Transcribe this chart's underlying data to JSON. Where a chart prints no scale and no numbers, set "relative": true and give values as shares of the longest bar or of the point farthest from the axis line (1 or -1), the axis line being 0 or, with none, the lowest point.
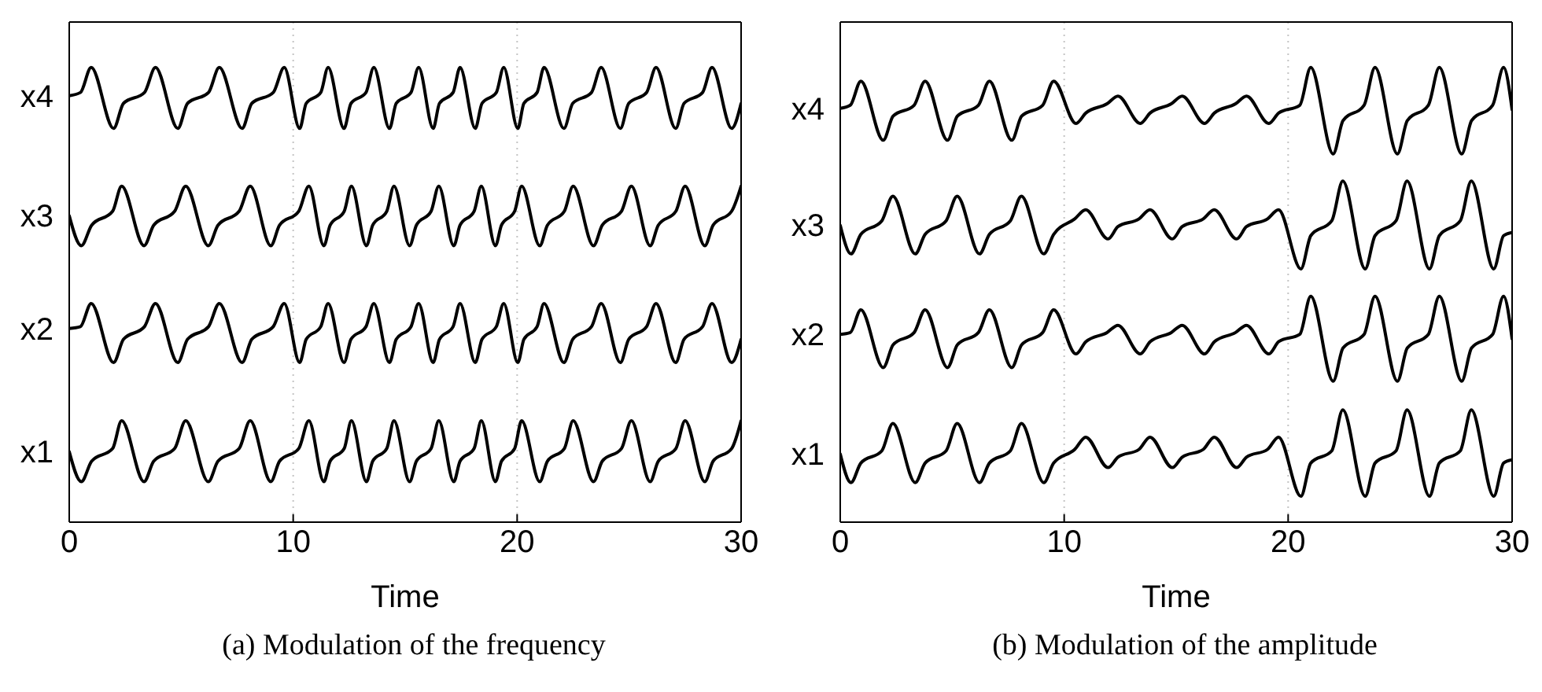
{
  "chart_data": [
    {
      "type": "line",
      "title": "(a) Modulation of the frequency",
      "xlabel": "Time",
      "xlim": [
        0,
        30
      ],
      "xticks": [
        0,
        10,
        20,
        30
      ],
      "relative": true,
      "grid": "x",
      "marker": "none",
      "line_style": "solid",
      "series": [
        {
          "name": "x4",
          "color": "#000000",
          "x": [
            0,
            0.5,
            0.98,
            1.98,
            2.42,
            3.36,
            3.85,
            4.85,
            5.28,
            6.22,
            6.7,
            7.72,
            8.15,
            9.11,
            9.6,
            10.29,
            10.58,
            11.23,
            11.56,
            12.27,
            12.58,
            13.25,
            13.6,
            14.3,
            14.6,
            15.26,
            15.6,
            16.25,
            16.53,
            17.14,
            17.45,
            18.13,
            18.43,
            19.07,
            19.4,
            20.03,
            20.3,
            20.89,
            21.2,
            22.09,
            22.48,
            23.32,
            23.75,
            24.61,
            24.98,
            25.78,
            26.2,
            27.08,
            27.45,
            28.28,
            28.7,
            29.58,
            30
          ],
          "values": [
            0.938,
            0.945,
            1,
            0.866,
            0.921,
            0.945,
            1,
            0.866,
            0.921,
            0.945,
            1,
            0.866,
            0.921,
            0.945,
            1,
            0.866,
            0.921,
            0.945,
            1,
            0.866,
            0.921,
            0.945,
            1,
            0.866,
            0.921,
            0.945,
            1,
            0.866,
            0.921,
            0.945,
            1,
            0.866,
            0.921,
            0.945,
            1,
            0.866,
            0.921,
            0.945,
            1,
            0.866,
            0.921,
            0.945,
            1,
            0.866,
            0.921,
            0.945,
            1,
            0.866,
            0.921,
            0.945,
            1,
            0.866,
            0.921
          ]
        },
        {
          "name": "x3",
          "color": "#000000",
          "x": [
            0,
            0.54,
            1.0,
            1.94,
            2.34,
            3.34,
            3.77,
            4.71,
            5.2,
            6.21,
            6.64,
            7.59,
            8.08,
            9.0,
            9.39,
            10.25,
            10.7,
            11.37,
            11.65,
            12.28,
            12.6,
            13.27,
            13.55,
            14.18,
            14.5,
            15.2,
            15.5,
            16.16,
            16.5,
            17.17,
            17.45,
            18.08,
            18.4,
            19.03,
            19.3,
            19.89,
            20.2,
            21.01,
            21.35,
            22.11,
            22.5,
            23.41,
            23.8,
            24.66,
            25.1,
            25.94,
            26.3,
            27.09,
            27.5,
            28.38,
            28.75,
            29.58,
            30
          ],
          "values": [
            0.674,
            0.608,
            0.653,
            0.684,
            0.739,
            0.608,
            0.653,
            0.684,
            0.739,
            0.608,
            0.653,
            0.684,
            0.739,
            0.608,
            0.653,
            0.684,
            0.739,
            0.608,
            0.653,
            0.684,
            0.739,
            0.608,
            0.653,
            0.684,
            0.739,
            0.608,
            0.653,
            0.684,
            0.739,
            0.608,
            0.653,
            0.684,
            0.739,
            0.608,
            0.653,
            0.684,
            0.739,
            0.608,
            0.653,
            0.684,
            0.739,
            0.608,
            0.653,
            0.684,
            0.739,
            0.608,
            0.653,
            0.684,
            0.739,
            0.608,
            0.653,
            0.684,
            0.739
          ]
        },
        {
          "name": "x2",
          "color": "#000000",
          "x": [
            0,
            0.5,
            0.98,
            1.98,
            2.42,
            3.36,
            3.85,
            4.85,
            5.28,
            6.22,
            6.7,
            7.72,
            8.15,
            9.11,
            9.6,
            10.29,
            10.58,
            11.23,
            11.56,
            12.27,
            12.58,
            13.25,
            13.6,
            14.3,
            14.6,
            15.26,
            15.6,
            16.25,
            16.53,
            17.14,
            17.45,
            18.13,
            18.43,
            19.07,
            19.4,
            20.03,
            20.3,
            20.89,
            21.2,
            22.09,
            22.48,
            23.32,
            23.75,
            24.61,
            24.98,
            25.78,
            26.2,
            27.08,
            27.45,
            28.28,
            28.7,
            29.58,
            30
          ],
          "values": [
            0.426,
            0.43,
            0.481,
            0.351,
            0.402,
            0.43,
            0.481,
            0.351,
            0.402,
            0.43,
            0.481,
            0.351,
            0.402,
            0.43,
            0.481,
            0.351,
            0.402,
            0.43,
            0.481,
            0.351,
            0.402,
            0.43,
            0.481,
            0.351,
            0.402,
            0.43,
            0.481,
            0.351,
            0.402,
            0.43,
            0.481,
            0.351,
            0.402,
            0.43,
            0.481,
            0.351,
            0.402,
            0.43,
            0.481,
            0.351,
            0.402,
            0.43,
            0.481,
            0.351,
            0.402,
            0.43,
            0.481,
            0.351,
            0.402,
            0.43,
            0.481,
            0.351,
            0.402
          ]
        },
        {
          "name": "x1",
          "color": "#000000",
          "x": [
            0,
            0.54,
            1.0,
            1.94,
            2.34,
            3.34,
            3.77,
            4.71,
            5.2,
            6.21,
            6.64,
            7.59,
            8.08,
            9.0,
            9.39,
            10.25,
            10.7,
            11.37,
            11.65,
            12.28,
            12.6,
            13.27,
            13.55,
            14.18,
            14.5,
            15.2,
            15.5,
            16.16,
            16.5,
            17.17,
            17.45,
            18.08,
            18.4,
            19.03,
            19.3,
            19.89,
            20.2,
            21.01,
            21.35,
            22.11,
            22.5,
            23.41,
            23.8,
            24.66,
            25.1,
            25.94,
            26.3,
            27.09,
            27.5,
            28.38,
            28.75,
            29.58,
            30
          ],
          "values": [
            0.155,
            0.089,
            0.134,
            0.162,
            0.223,
            0.089,
            0.134,
            0.162,
            0.223,
            0.089,
            0.134,
            0.162,
            0.223,
            0.089,
            0.134,
            0.162,
            0.223,
            0.089,
            0.134,
            0.162,
            0.223,
            0.089,
            0.134,
            0.162,
            0.223,
            0.089,
            0.134,
            0.162,
            0.223,
            0.089,
            0.134,
            0.162,
            0.223,
            0.089,
            0.134,
            0.162,
            0.223,
            0.089,
            0.134,
            0.162,
            0.223,
            0.089,
            0.134,
            0.162,
            0.223,
            0.089,
            0.134,
            0.162,
            0.223,
            0.089,
            0.134,
            0.162,
            0.223
          ]
        }
      ]
    },
    {
      "type": "line",
      "title": "(b) Modulation of the amplitude",
      "xlabel": "Time",
      "xlim": [
        0,
        30
      ],
      "xticks": [
        0,
        10,
        20,
        30
      ],
      "relative": true,
      "grid": "x",
      "marker": "none",
      "line_style": "solid",
      "series": [
        {
          "name": "x4",
          "color": "#000000",
          "x": [
            0,
            0.45,
            0.92,
            1.92,
            2.36,
            3.3,
            3.79,
            4.79,
            5.23,
            6.17,
            6.66,
            7.66,
            8.1,
            9.04,
            9.53,
            10.53,
            10.97,
            11.91,
            12.4,
            13.4,
            13.84,
            14.78,
            15.27,
            16.27,
            16.71,
            17.65,
            18.14,
            19.14,
            19.58,
            20.52,
            21.01,
            22.01,
            22.45,
            23.39,
            23.88,
            24.88,
            25.32,
            26.26,
            26.75,
            27.75,
            28.19,
            29.13,
            29.62,
            30
          ],
          "values": [
            0.91,
            0.917,
            0.97,
            0.84,
            0.893,
            0.917,
            0.97,
            0.84,
            0.893,
            0.917,
            0.97,
            0.84,
            0.893,
            0.917,
            0.97,
            0.877,
            0.9,
            0.92,
            0.937,
            0.877,
            0.9,
            0.92,
            0.937,
            0.877,
            0.9,
            0.92,
            0.937,
            0.877,
            0.9,
            0.917,
            1,
            0.81,
            0.883,
            0.917,
            1,
            0.81,
            0.883,
            0.917,
            1,
            0.81,
            0.883,
            0.917,
            1,
            0.907
          ]
        },
        {
          "name": "x3",
          "color": "#000000",
          "x": [
            0,
            0.48,
            0.92,
            1.86,
            2.35,
            3.35,
            3.79,
            4.73,
            5.22,
            6.22,
            6.66,
            7.6,
            8.09,
            9.09,
            9.53,
            10.47,
            10.96,
            11.96,
            12.4,
            13.34,
            13.83,
            14.83,
            15.27,
            16.21,
            16.7,
            17.7,
            18.14,
            19.08,
            19.57,
            20.57,
            21.01,
            21.95,
            22.44,
            23.44,
            23.88,
            24.82,
            25.31,
            26.31,
            26.75,
            27.69,
            28.18,
            29.18,
            29.62,
            30
          ],
          "values": [
            0.653,
            0.59,
            0.633,
            0.663,
            0.717,
            0.59,
            0.633,
            0.663,
            0.717,
            0.59,
            0.633,
            0.663,
            0.717,
            0.59,
            0.633,
            0.667,
            0.687,
            0.623,
            0.65,
            0.667,
            0.687,
            0.623,
            0.65,
            0.667,
            0.687,
            0.623,
            0.65,
            0.667,
            0.687,
            0.557,
            0.63,
            0.663,
            0.75,
            0.557,
            0.63,
            0.663,
            0.75,
            0.557,
            0.63,
            0.663,
            0.75,
            0.557,
            0.63,
            0.637
          ]
        },
        {
          "name": "x2",
          "color": "#000000",
          "x": [
            0,
            0.45,
            0.92,
            1.92,
            2.36,
            3.3,
            3.79,
            4.79,
            5.23,
            6.17,
            6.66,
            7.66,
            8.1,
            9.04,
            9.53,
            10.53,
            10.97,
            11.91,
            12.4,
            13.4,
            13.84,
            14.78,
            15.27,
            16.27,
            16.71,
            17.65,
            18.14,
            19.14,
            19.58,
            20.52,
            21.01,
            22.01,
            22.45,
            23.39,
            23.88,
            24.88,
            25.32,
            26.26,
            26.75,
            27.75,
            28.19,
            29.13,
            29.62,
            30
          ],
          "values": [
            0.413,
            0.417,
            0.467,
            0.34,
            0.39,
            0.417,
            0.467,
            0.34,
            0.39,
            0.417,
            0.467,
            0.34,
            0.39,
            0.417,
            0.467,
            0.37,
            0.397,
            0.417,
            0.433,
            0.37,
            0.397,
            0.417,
            0.433,
            0.37,
            0.397,
            0.417,
            0.433,
            0.37,
            0.397,
            0.413,
            0.497,
            0.31,
            0.383,
            0.413,
            0.497,
            0.31,
            0.383,
            0.413,
            0.497,
            0.31,
            0.383,
            0.413,
            0.497,
            0.403
          ]
        },
        {
          "name": "x1",
          "color": "#000000",
          "x": [
            0,
            0.48,
            0.92,
            1.86,
            2.35,
            3.35,
            3.79,
            4.73,
            5.22,
            6.22,
            6.66,
            7.6,
            8.09,
            9.09,
            9.53,
            10.47,
            10.96,
            11.96,
            12.4,
            13.34,
            13.83,
            14.83,
            15.27,
            16.21,
            16.7,
            17.7,
            18.14,
            19.08,
            19.57,
            20.57,
            21.01,
            21.95,
            22.44,
            23.44,
            23.88,
            24.82,
            25.31,
            26.31,
            26.75,
            27.69,
            28.18,
            29.18,
            29.62,
            30
          ],
          "values": [
            0.15,
            0.087,
            0.13,
            0.157,
            0.217,
            0.087,
            0.13,
            0.157,
            0.217,
            0.087,
            0.13,
            0.157,
            0.217,
            0.087,
            0.13,
            0.16,
            0.187,
            0.12,
            0.143,
            0.16,
            0.187,
            0.12,
            0.143,
            0.16,
            0.187,
            0.12,
            0.143,
            0.16,
            0.187,
            0.057,
            0.13,
            0.157,
            0.247,
            0.057,
            0.13,
            0.157,
            0.247,
            0.057,
            0.13,
            0.157,
            0.247,
            0.057,
            0.13,
            0.137
          ]
        }
      ]
    }
  ]
}
